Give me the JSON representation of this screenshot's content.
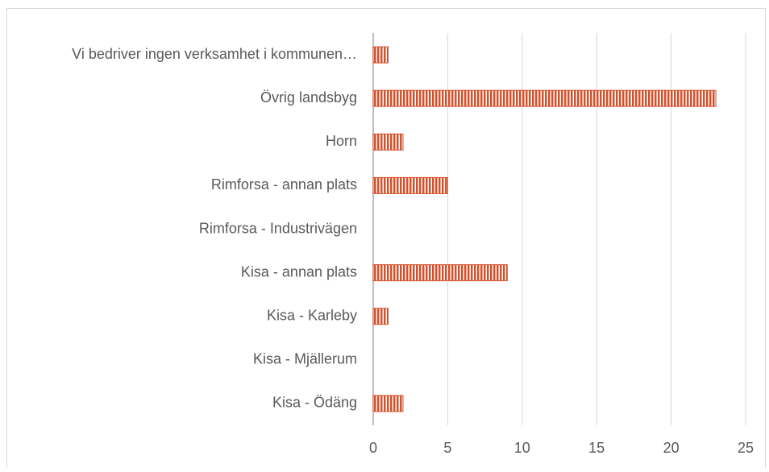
{
  "chart_data": {
    "type": "bar",
    "orientation": "horizontal",
    "categories": [
      "Vi bedriver ingen verksamhet i kommunen…",
      "Övrig landsbyg",
      "Horn",
      "Rimforsa - annan plats",
      "Rimforsa - Industrivägen",
      "Kisa - annan plats",
      "Kisa - Karleby",
      "Kisa - Mjällerum",
      "Kisa - Ödäng"
    ],
    "values": [
      1,
      23,
      2,
      5,
      0,
      9,
      1,
      0,
      2
    ],
    "color": "#d5502b",
    "xlim": [
      0,
      25
    ],
    "xticks": [
      0,
      5,
      10,
      15,
      20,
      25
    ],
    "grid": true
  }
}
